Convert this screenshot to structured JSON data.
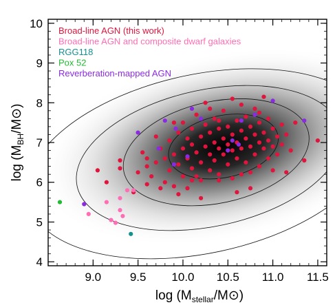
{
  "chart_data": {
    "type": "scatter",
    "xlabel": "log (M",
    "xlabel_sub": "stellar",
    "xlabel_tail": "/M⊙)",
    "ylabel": "log (M",
    "ylabel_sub": "BH",
    "ylabel_tail": "/M⊙)",
    "xlim": [
      8.5,
      11.6
    ],
    "ylim": [
      3.9,
      10.1
    ],
    "xticks": [
      "9.0",
      "9.5",
      "10.0",
      "10.5",
      "11.0",
      "11.5"
    ],
    "xtick_values": [
      9.0,
      9.5,
      10.0,
      10.5,
      11.0,
      11.5
    ],
    "yticks": [
      "4",
      "5",
      "6",
      "7",
      "8",
      "9",
      "10"
    ],
    "ytick_values": [
      4,
      5,
      6,
      7,
      8,
      9,
      10
    ],
    "density_center": [
      10.45,
      6.9
    ],
    "contour_levels": [
      {
        "rx": 0.62,
        "ry": 0.78
      },
      {
        "rx": 1.05,
        "ry": 1.28
      },
      {
        "rx": 1.5,
        "ry": 1.72
      },
      {
        "rx": 1.98,
        "ry": 2.25
      }
    ],
    "legend_position": "top-left",
    "series": [
      {
        "name": "Broad-line AGN (this work)",
        "color": "#e0143c",
        "points": [
          [
            9.05,
            6.3
          ],
          [
            9.15,
            6.0
          ],
          [
            9.3,
            6.35
          ],
          [
            9.3,
            6.55
          ],
          [
            9.5,
            6.25
          ],
          [
            9.55,
            6.75
          ],
          [
            9.6,
            6.4
          ],
          [
            9.6,
            5.95
          ],
          [
            9.65,
            6.15
          ],
          [
            9.7,
            6.5
          ],
          [
            9.75,
            6.85
          ],
          [
            9.75,
            5.85
          ],
          [
            9.8,
            6.6
          ],
          [
            9.8,
            6.0
          ],
          [
            9.85,
            6.3
          ],
          [
            9.85,
            7.05
          ],
          [
            9.9,
            6.7
          ],
          [
            9.9,
            5.9
          ],
          [
            9.95,
            6.45
          ],
          [
            9.95,
            7.25
          ],
          [
            10.0,
            6.15
          ],
          [
            10.0,
            6.85
          ],
          [
            10.0,
            7.5
          ],
          [
            10.05,
            6.6
          ],
          [
            10.05,
            7.1
          ],
          [
            10.1,
            6.35
          ],
          [
            10.1,
            7.35
          ],
          [
            10.1,
            6.95
          ],
          [
            10.15,
            6.75
          ],
          [
            10.15,
            7.7
          ],
          [
            10.2,
            6.5
          ],
          [
            10.2,
            7.15
          ],
          [
            10.2,
            6.05
          ],
          [
            10.25,
            6.9
          ],
          [
            10.25,
            7.45
          ],
          [
            10.3,
            6.7
          ],
          [
            10.3,
            7.25
          ],
          [
            10.3,
            6.3
          ],
          [
            10.35,
            7.0
          ],
          [
            10.35,
            7.6
          ],
          [
            10.35,
            6.55
          ],
          [
            10.4,
            6.85
          ],
          [
            10.4,
            7.35
          ],
          [
            10.4,
            6.2
          ],
          [
            10.45,
            7.1
          ],
          [
            10.45,
            6.7
          ],
          [
            10.45,
            7.8
          ],
          [
            10.5,
            6.95
          ],
          [
            10.5,
            6.45
          ],
          [
            10.5,
            7.4
          ],
          [
            10.55,
            7.2
          ],
          [
            10.55,
            6.8
          ],
          [
            10.55,
            6.1
          ],
          [
            10.6,
            7.0
          ],
          [
            10.6,
            7.55
          ],
          [
            10.6,
            6.6
          ],
          [
            10.65,
            7.3
          ],
          [
            10.65,
            6.85
          ],
          [
            10.65,
            7.95
          ],
          [
            10.7,
            7.1
          ],
          [
            10.7,
            6.5
          ],
          [
            10.7,
            7.65
          ],
          [
            10.75,
            6.9
          ],
          [
            10.75,
            7.4
          ],
          [
            10.75,
            6.25
          ],
          [
            10.8,
            7.2
          ],
          [
            10.8,
            6.7
          ],
          [
            10.8,
            7.85
          ],
          [
            10.85,
            7.0
          ],
          [
            10.85,
            6.4
          ],
          [
            10.85,
            7.5
          ],
          [
            10.9,
            6.85
          ],
          [
            10.9,
            7.25
          ],
          [
            10.95,
            6.6
          ],
          [
            10.95,
            7.6
          ],
          [
            10.95,
            7.05
          ],
          [
            11.0,
            6.9
          ],
          [
            11.0,
            7.35
          ],
          [
            11.0,
            6.3
          ],
          [
            11.05,
            7.15
          ],
          [
            11.05,
            6.7
          ],
          [
            11.1,
            7.45
          ],
          [
            11.1,
            6.95
          ],
          [
            11.15,
            7.2
          ],
          [
            11.2,
            6.8
          ],
          [
            11.25,
            7.5
          ],
          [
            11.35,
            6.55
          ],
          [
            11.5,
            7.05
          ],
          [
            10.3,
            7.85
          ],
          [
            10.55,
            8.1
          ],
          [
            10.9,
            8.15
          ],
          [
            9.45,
            5.75
          ],
          [
            9.95,
            5.7
          ],
          [
            10.2,
            5.6
          ],
          [
            10.6,
            5.75
          ],
          [
            10.1,
            6.05
          ],
          [
            10.4,
            6.05
          ],
          [
            9.7,
            7.15
          ],
          [
            9.9,
            7.5
          ],
          [
            10.25,
            8.0
          ],
          [
            10.75,
            5.85
          ],
          [
            11.15,
            6.25
          ],
          [
            10.65,
            6.2
          ],
          [
            9.6,
            6.6
          ],
          [
            10.05,
            5.85
          ],
          [
            10.85,
            7.75
          ],
          [
            10.4,
            7.55
          ],
          [
            10.15,
            6.15
          ]
        ]
      },
      {
        "name": "Broad-line AGN and composite dwarf galaxies",
        "color": "#ff6eb4",
        "points": [
          [
            8.95,
            5.2
          ],
          [
            9.15,
            5.5
          ],
          [
            9.2,
            5.05
          ],
          [
            9.3,
            5.3
          ],
          [
            9.33,
            5.15
          ],
          [
            9.38,
            5.8
          ],
          [
            9.45,
            5.8
          ],
          [
            9.25,
            4.98
          ],
          [
            9.3,
            5.6
          ]
        ]
      },
      {
        "name": "RGG118",
        "color": "#13918f",
        "points": [
          [
            9.42,
            4.7
          ]
        ]
      },
      {
        "name": "Pox 52",
        "color": "#22bb33",
        "points": [
          [
            8.63,
            5.5
          ]
        ]
      },
      {
        "name": "Reverberation-mapped AGN",
        "color": "#8a2be2",
        "points": [
          [
            8.9,
            5.45
          ],
          [
            9.5,
            7.25
          ],
          [
            9.73,
            6.85
          ],
          [
            9.8,
            7.55
          ],
          [
            9.9,
            6.45
          ],
          [
            9.92,
            7.35
          ],
          [
            10.1,
            7.85
          ],
          [
            10.2,
            7.6
          ],
          [
            10.5,
            6.8
          ],
          [
            10.55,
            7.05
          ],
          [
            10.62,
            6.95
          ],
          [
            10.65,
            7.55
          ],
          [
            10.8,
            7.7
          ],
          [
            10.05,
            6.65
          ],
          [
            11.35,
            7.55
          ],
          [
            11.0,
            8.05
          ]
        ]
      }
    ]
  }
}
